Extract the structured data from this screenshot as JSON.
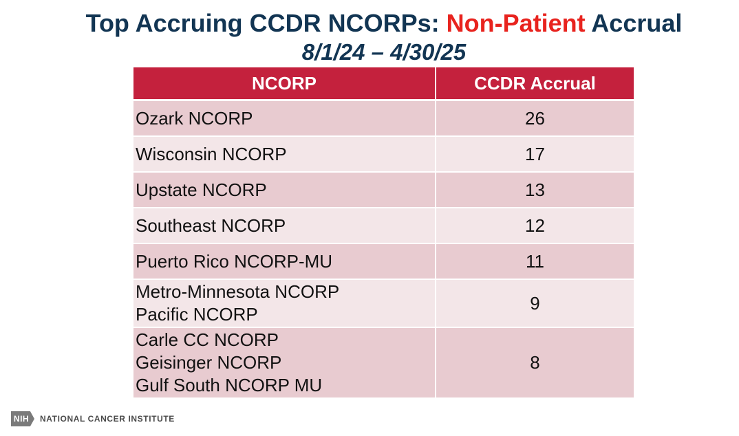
{
  "slide": {
    "title_part1": "Top Accruing CCDR NCORPs: ",
    "title_highlight": "Non-Patient",
    "title_part2": " Accrual",
    "subtitle": "8/1/24 – 4/30/25",
    "highlight_color": "#e8231e",
    "title_color": "#123553"
  },
  "table": {
    "headers": [
      "NCORP",
      "CCDR Accrual"
    ],
    "header_color": "#c4213d",
    "rows": [
      {
        "names": [
          "Ozark NCORP"
        ],
        "value": "26"
      },
      {
        "names": [
          "Wisconsin NCORP"
        ],
        "value": "17"
      },
      {
        "names": [
          "Upstate NCORP"
        ],
        "value": "13"
      },
      {
        "names": [
          "Southeast NCORP"
        ],
        "value": "12"
      },
      {
        "names": [
          "Puerto Rico NCORP-MU"
        ],
        "value": "11"
      },
      {
        "names": [
          "Metro-Minnesota NCORP",
          "Pacific NCORP"
        ],
        "value": "9"
      },
      {
        "names": [
          "Carle CC NCORP",
          "Geisinger NCORP",
          "Gulf South NCORP MU"
        ],
        "value": "8"
      }
    ]
  },
  "footer": {
    "logo_text": "NIH",
    "org_name": "NATIONAL CANCER INSTITUTE",
    "logo_icon": "nih-logo-icon"
  }
}
